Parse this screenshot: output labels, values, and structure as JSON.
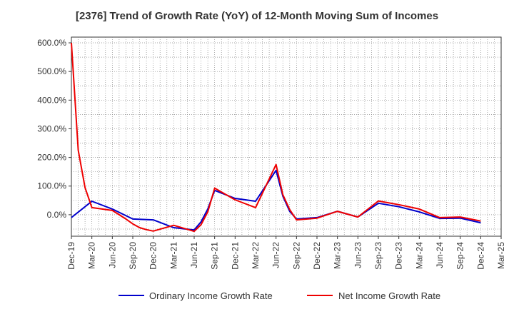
{
  "chart_data": {
    "type": "line",
    "title": "[2376]  Trend of Growth Rate (YoY) of 12-Month Moving Sum of Incomes",
    "xlabel": "",
    "ylabel": "",
    "x_tick_labels": [
      "Dec-19",
      "Mar-20",
      "Jun-20",
      "Sep-20",
      "Dec-20",
      "Mar-21",
      "Jun-21",
      "Sep-21",
      "Dec-21",
      "Mar-22",
      "Jun-22",
      "Sep-22",
      "Dec-22",
      "Mar-23",
      "Jun-23",
      "Sep-23",
      "Dec-23",
      "Mar-24",
      "Jun-24",
      "Sep-24",
      "Dec-24",
      "Mar-25"
    ],
    "y_tick_labels": [
      "0.0%",
      "100.0%",
      "200.0%",
      "300.0%",
      "400.0%",
      "500.0%",
      "600.0%"
    ],
    "y_ticks": [
      0,
      100,
      200,
      300,
      400,
      500,
      600
    ],
    "ylim": [
      -75,
      620
    ],
    "xlim_months": [
      0,
      63
    ],
    "grid": true,
    "legend_position": "bottom",
    "series": [
      {
        "name": "Ordinary Income Growth Rate",
        "color": "#0000cc",
        "x": [
          "Dec-19",
          "Mar-20",
          "Jun-20",
          "Sep-20",
          "Dec-20",
          "Mar-21",
          "Jun-21",
          "Jul-21",
          "Aug-21",
          "Sep-21",
          "Dec-21",
          "Mar-22",
          "Jun-22",
          "Jul-22",
          "Aug-22",
          "Sep-22",
          "Dec-22",
          "Mar-23",
          "Jun-23",
          "Sep-23",
          "Dec-23",
          "Mar-24",
          "Jun-24",
          "Sep-24",
          "Dec-24"
        ],
        "values": [
          -10,
          47,
          20,
          -15,
          -18,
          -45,
          -53,
          -25,
          20,
          85,
          57,
          47,
          155,
          65,
          12,
          -15,
          -10,
          12,
          -8,
          40,
          28,
          10,
          -13,
          -12,
          -28
        ]
      },
      {
        "name": "Net Income Growth Rate",
        "color": "#ee0000",
        "x": [
          "Dec-19",
          "Jan-20",
          "Feb-20",
          "Mar-20",
          "Jun-20",
          "Jul-20",
          "Aug-20",
          "Sep-20",
          "Oct-20",
          "Nov-20",
          "Dec-20",
          "Mar-21",
          "Jun-21",
          "Jul-21",
          "Aug-21",
          "Sep-21",
          "Dec-21",
          "Mar-22",
          "Jun-22",
          "Jul-22",
          "Aug-22",
          "Sep-22",
          "Dec-22",
          "Mar-23",
          "Jun-23",
          "Sep-23",
          "Dec-23",
          "Mar-24",
          "Jun-24",
          "Sep-24",
          "Dec-24"
        ],
        "values": [
          600,
          225,
          95,
          25,
          15,
          0,
          -15,
          -32,
          -45,
          -52,
          -57,
          -37,
          -58,
          -35,
          10,
          93,
          52,
          25,
          175,
          70,
          18,
          -18,
          -12,
          12,
          -8,
          48,
          35,
          20,
          -10,
          -8,
          -22
        ]
      }
    ]
  }
}
